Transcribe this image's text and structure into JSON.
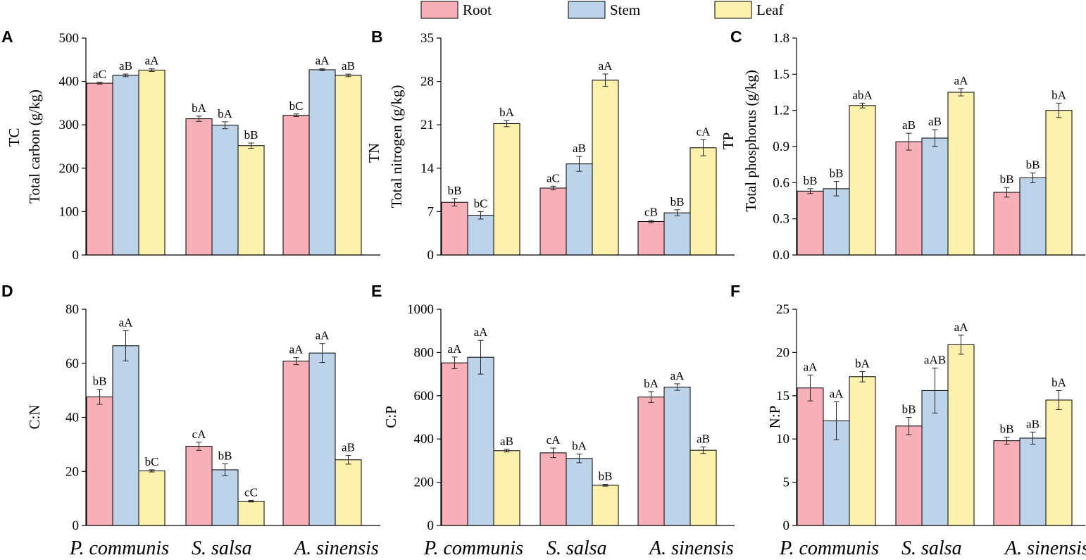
{
  "colors": {
    "Root": "#f8b0b8",
    "Stem": "#bcd3ea",
    "Leaf": "#fbf0ac",
    "stroke": "#000000"
  },
  "legend": [
    "Root",
    "Stem",
    "Leaf"
  ],
  "chart_data": [
    {
      "panel": "A",
      "type": "bar",
      "categories": [
        "P. communis",
        "S. salsa",
        "A. sinensis"
      ],
      "ylabel_short": "TC",
      "ylabel": "Total carbon (g/kg)",
      "ylim": [
        0,
        500
      ],
      "yticks": [
        0,
        100,
        200,
        300,
        400,
        500
      ],
      "decimals": 0,
      "series": [
        {
          "name": "Root",
          "values": [
            396,
            314,
            322
          ],
          "errors": [
            2,
            6,
            3
          ],
          "labels": [
            "aC",
            "bA",
            "bC"
          ]
        },
        {
          "name": "Stem",
          "values": [
            414,
            299,
            427
          ],
          "errors": [
            3,
            8,
            2
          ],
          "labels": [
            "aB",
            "bA",
            "aA"
          ]
        },
        {
          "name": "Leaf",
          "values": [
            426,
            252,
            414
          ],
          "errors": [
            3,
            6,
            3
          ],
          "labels": [
            "aA",
            "bB",
            "aB"
          ]
        }
      ]
    },
    {
      "panel": "B",
      "type": "bar",
      "categories": [
        "P. communis",
        "S. salsa",
        "A. sinensis"
      ],
      "ylabel_short": "TN",
      "ylabel": "Total nitrogen (g/kg)",
      "ylim": [
        0,
        35
      ],
      "yticks": [
        0,
        7,
        14,
        21,
        28,
        35
      ],
      "decimals": 0,
      "series": [
        {
          "name": "Root",
          "values": [
            8.5,
            10.8,
            5.4
          ],
          "errors": [
            0.6,
            0.3,
            0.2
          ],
          "labels": [
            "bB",
            "aC",
            "cB"
          ]
        },
        {
          "name": "Stem",
          "values": [
            6.4,
            14.7,
            6.8
          ],
          "errors": [
            0.6,
            1.2,
            0.5
          ],
          "labels": [
            "bC",
            "aB",
            "bB"
          ]
        },
        {
          "name": "Leaf",
          "values": [
            21.2,
            28.2,
            17.3
          ],
          "errors": [
            0.5,
            1.0,
            1.3
          ],
          "labels": [
            "bA",
            "aA",
            "cA"
          ]
        }
      ]
    },
    {
      "panel": "C",
      "type": "bar",
      "categories": [
        "P. communis",
        "S. salsa",
        "A. sinensis"
      ],
      "ylabel_short": "TP",
      "ylabel": "Total phosphorus (g/kg)",
      "ylim": [
        0,
        1.8
      ],
      "yticks": [
        0.0,
        0.3,
        0.6,
        0.9,
        1.2,
        1.5,
        1.8
      ],
      "decimals": 1,
      "series": [
        {
          "name": "Root",
          "values": [
            0.53,
            0.94,
            0.52
          ],
          "errors": [
            0.02,
            0.07,
            0.04
          ],
          "labels": [
            "bB",
            "aB",
            "bB"
          ]
        },
        {
          "name": "Stem",
          "values": [
            0.55,
            0.97,
            0.64
          ],
          "errors": [
            0.06,
            0.07,
            0.04
          ],
          "labels": [
            "bB",
            "aB",
            "bB"
          ]
        },
        {
          "name": "Leaf",
          "values": [
            1.24,
            1.35,
            1.2
          ],
          "errors": [
            0.02,
            0.03,
            0.06
          ],
          "labels": [
            "abA",
            "aA",
            "bA"
          ]
        }
      ]
    },
    {
      "panel": "D",
      "type": "bar",
      "categories": [
        "P. communis",
        "S. salsa",
        "A. sinensis"
      ],
      "ylabel": "C:N",
      "ylim": [
        0,
        80
      ],
      "yticks": [
        0,
        20,
        40,
        60,
        80
      ],
      "decimals": 0,
      "series": [
        {
          "name": "Root",
          "values": [
            47.6,
            29.3,
            60.8
          ],
          "errors": [
            2.8,
            1.5,
            1.3
          ],
          "labels": [
            "bB",
            "cA",
            "aA"
          ]
        },
        {
          "name": "Stem",
          "values": [
            66.5,
            20.6,
            63.8
          ],
          "errors": [
            5.6,
            2.2,
            3.5
          ],
          "labels": [
            "aA",
            "bB",
            "aA"
          ]
        },
        {
          "name": "Leaf",
          "values": [
            20.2,
            9.0,
            24.3
          ],
          "errors": [
            0.4,
            0.3,
            1.6
          ],
          "labels": [
            "bC",
            "cC",
            "aB"
          ]
        }
      ]
    },
    {
      "panel": "E",
      "type": "bar",
      "categories": [
        "P. communis",
        "S. salsa",
        "A. sinensis"
      ],
      "ylabel": "C:P",
      "ylim": [
        0,
        1000
      ],
      "yticks": [
        0,
        200,
        400,
        600,
        800,
        1000
      ],
      "decimals": 0,
      "series": [
        {
          "name": "Root",
          "values": [
            752,
            336,
            594
          ],
          "errors": [
            27,
            22,
            25
          ],
          "labels": [
            "aA",
            "cA",
            "bA"
          ]
        },
        {
          "name": "Stem",
          "values": [
            778,
            310,
            640
          ],
          "errors": [
            78,
            20,
            15
          ],
          "labels": [
            "aA",
            "bA",
            "aA"
          ]
        },
        {
          "name": "Leaf",
          "values": [
            346,
            186,
            348
          ],
          "errors": [
            6,
            4,
            15
          ],
          "labels": [
            "aB",
            "bB",
            "aB"
          ]
        }
      ]
    },
    {
      "panel": "F",
      "type": "bar",
      "categories": [
        "P. communis",
        "S. salsa",
        "A. sinensis"
      ],
      "ylabel": "N:P",
      "ylim": [
        0,
        25
      ],
      "yticks": [
        0,
        5,
        10,
        15,
        20,
        25
      ],
      "decimals": 0,
      "series": [
        {
          "name": "Root",
          "values": [
            15.9,
            11.5,
            9.8
          ],
          "errors": [
            1.5,
            1.0,
            0.4
          ],
          "labels": [
            "aA",
            "bB",
            "bB"
          ]
        },
        {
          "name": "Stem",
          "values": [
            12.1,
            15.6,
            10.1
          ],
          "errors": [
            2.2,
            2.6,
            0.7
          ],
          "labels": [
            "aA",
            "aAB",
            "aB"
          ]
        },
        {
          "name": "Leaf",
          "values": [
            17.2,
            20.9,
            14.5
          ],
          "errors": [
            0.6,
            1.1,
            1.1
          ],
          "labels": [
            "bA",
            "aA",
            "bA"
          ]
        }
      ]
    }
  ]
}
